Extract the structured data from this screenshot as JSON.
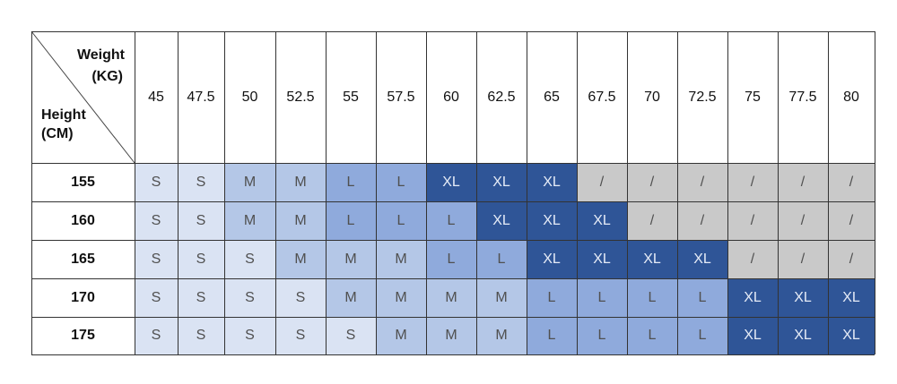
{
  "header": {
    "weight_label": "Weight",
    "weight_unit": "(KG)",
    "height_label": "Height",
    "height_unit": "(CM)"
  },
  "weights": [
    "45",
    "47.5",
    "50",
    "52.5",
    "55",
    "57.5",
    "60",
    "62.5",
    "65",
    "67.5",
    "70",
    "72.5",
    "75",
    "77.5",
    "80"
  ],
  "rows": [
    {
      "height": "155",
      "sizes": [
        "S",
        "S",
        "M",
        "M",
        "L",
        "L",
        "XL",
        "XL",
        "XL",
        "/",
        "/",
        "/",
        "/",
        "/",
        "/"
      ]
    },
    {
      "height": "160",
      "sizes": [
        "S",
        "S",
        "M",
        "M",
        "L",
        "L",
        "L",
        "XL",
        "XL",
        "XL",
        "/",
        "/",
        "/",
        "/",
        "/"
      ]
    },
    {
      "height": "165",
      "sizes": [
        "S",
        "S",
        "S",
        "M",
        "M",
        "M",
        "L",
        "L",
        "XL",
        "XL",
        "XL",
        "XL",
        "/",
        "/",
        "/"
      ]
    },
    {
      "height": "170",
      "sizes": [
        "S",
        "S",
        "S",
        "S",
        "M",
        "M",
        "M",
        "M",
        "L",
        "L",
        "L",
        "L",
        "XL",
        "XL",
        "XL"
      ]
    },
    {
      "height": "175",
      "sizes": [
        "S",
        "S",
        "S",
        "S",
        "S",
        "M",
        "M",
        "M",
        "L",
        "L",
        "L",
        "L",
        "XL",
        "XL",
        "XL"
      ]
    }
  ],
  "size_colors": {
    "S": "#dae3f3",
    "M": "#b4c7e7",
    "L": "#8faadc",
    "XL": "#2f5597",
    "/": "#c9c9c9"
  },
  "size_text_colors": {
    "S": "#505050",
    "M": "#505050",
    "L": "#505050",
    "XL": "#e6ecf7",
    "/": "#505050"
  }
}
